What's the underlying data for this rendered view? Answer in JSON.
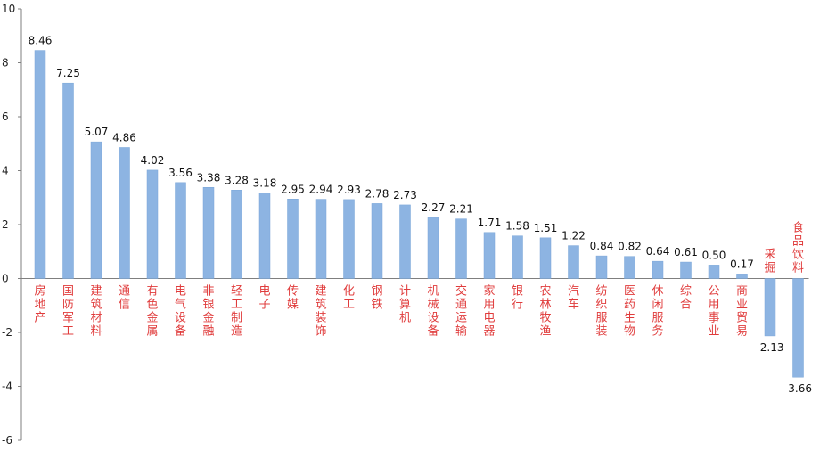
{
  "colors": {
    "bar": "#8db4e2",
    "bar_stroke": "#7aa6d8",
    "category_text": "#e03c3c",
    "axis": "#7f7f7f",
    "background": "#ffffff"
  },
  "chart_data": {
    "type": "bar",
    "title": "",
    "xlabel": "",
    "ylabel": "",
    "ylim": [
      -6,
      10
    ],
    "yticks": [
      -6,
      -4,
      -2,
      0,
      2,
      4,
      6,
      8,
      10
    ],
    "grid": false,
    "legend": "none",
    "categories": [
      "房地产",
      "国防军工",
      "建筑材料",
      "通信",
      "有色金属",
      "电气设备",
      "非银金融",
      "轻工制造",
      "电子",
      "传媒",
      "建筑装饰",
      "化工",
      "钢铁",
      "计算机",
      "机械设备",
      "交通运输",
      "家用电器",
      "银行",
      "农林牧渔",
      "汽车",
      "纺织服装",
      "医药生物",
      "休闲服务",
      "综合",
      "公用事业",
      "商业贸易",
      "采掘",
      "食品饮料"
    ],
    "values": [
      8.46,
      7.25,
      5.07,
      4.86,
      4.02,
      3.56,
      3.38,
      3.28,
      3.18,
      2.95,
      2.94,
      2.93,
      2.78,
      2.73,
      2.27,
      2.21,
      1.71,
      1.58,
      1.51,
      1.22,
      0.84,
      0.82,
      0.64,
      0.61,
      0.5,
      0.17,
      -2.13,
      -3.66
    ],
    "data_labels": [
      "8.46",
      "7.25",
      "5.07",
      "4.86",
      "4.02",
      "3.56",
      "3.38",
      "3.28",
      "3.18",
      "2.95",
      "2.94",
      "2.93",
      "2.78",
      "2.73",
      "2.27",
      "2.21",
      "1.71",
      "1.58",
      "1.51",
      "1.22",
      "0.84",
      "0.82",
      "0.64",
      "0.61",
      "0.50",
      "0.17",
      "-2.13",
      "-3.66"
    ]
  }
}
